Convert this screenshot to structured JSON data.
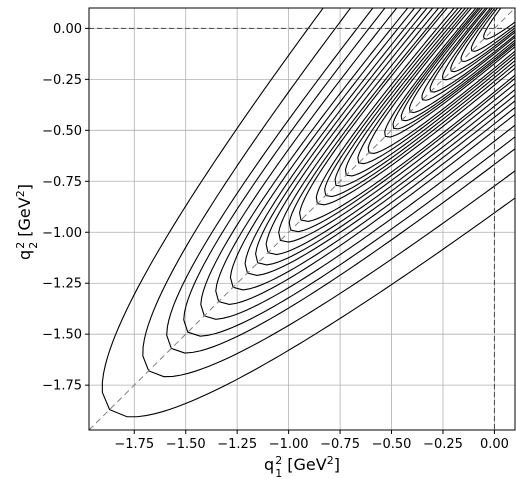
{
  "chart_data": {
    "type": "contour",
    "xlabel": {
      "main": "q",
      "sup": "2",
      "sub": "1",
      "unit_prefix": " [GeV",
      "unit_sup": "2",
      "unit_suffix": "]"
    },
    "ylabel": {
      "main": "q",
      "sup": "2",
      "sub": "2",
      "unit_prefix": " [GeV",
      "unit_sup": "2",
      "unit_suffix": "]"
    },
    "xlim": [
      -1.97,
      0.1
    ],
    "ylim": [
      -1.97,
      0.1
    ],
    "grid": true,
    "x_ticks": [
      -1.75,
      -1.5,
      -1.25,
      -1.0,
      -0.75,
      -0.5,
      -0.25,
      0.0
    ],
    "y_ticks": [
      0.0,
      -0.25,
      -0.5,
      -0.75,
      -1.0,
      -1.25,
      -1.5,
      -1.75
    ],
    "x_tick_labels": [
      "−1.75",
      "−1.50",
      "−1.25",
      "−1.00",
      "−0.75",
      "−0.50",
      "−0.25",
      "0.00"
    ],
    "y_tick_labels": [
      "0.00",
      "−0.25",
      "−0.50",
      "−0.75",
      "−1.00",
      "−1.25",
      "−1.50",
      "−1.75"
    ],
    "reference_lines": [
      {
        "type": "horizontal",
        "y": 0.0,
        "style": "dashed"
      },
      {
        "type": "vertical",
        "x": 0.0,
        "style": "dashed"
      },
      {
        "type": "diagonal",
        "equation": "y = x",
        "style": "dashed"
      }
    ],
    "contours": [
      {
        "tip": -1.87,
        "half_width_coef": 0.19
      },
      {
        "tip": -1.68,
        "half_width_coef": 0.17
      },
      {
        "tip": -1.57,
        "half_width_coef": 0.15
      },
      {
        "tip": -1.49,
        "half_width_coef": 0.14
      },
      {
        "tip": -1.41,
        "half_width_coef": 0.13
      },
      {
        "tip": -1.34,
        "half_width_coef": 0.12
      },
      {
        "tip": -1.27,
        "half_width_coef": 0.115
      },
      {
        "tip": -1.2,
        "half_width_coef": 0.11
      },
      {
        "tip": -1.15,
        "half_width_coef": 0.105
      },
      {
        "tip": -1.1,
        "half_width_coef": 0.1
      },
      {
        "tip": -1.04,
        "half_width_coef": 0.095
      },
      {
        "tip": -0.99,
        "half_width_coef": 0.09
      },
      {
        "tip": -0.94,
        "half_width_coef": 0.088
      },
      {
        "tip": -0.86,
        "half_width_coef": 0.082
      },
      {
        "tip": -0.82,
        "half_width_coef": 0.078
      },
      {
        "tip": -0.77,
        "half_width_coef": 0.075
      },
      {
        "tip": -0.72,
        "half_width_coef": 0.072
      },
      {
        "tip": -0.66,
        "half_width_coef": 0.07
      },
      {
        "tip": -0.61,
        "half_width_coef": 0.068
      },
      {
        "tip": -0.53,
        "half_width_coef": 0.065
      },
      {
        "tip": -0.49,
        "half_width_coef": 0.063
      },
      {
        "tip": -0.45,
        "half_width_coef": 0.062
      },
      {
        "tip": -0.41,
        "half_width_coef": 0.06
      },
      {
        "tip": -0.35,
        "half_width_coef": 0.058
      },
      {
        "tip": -0.31,
        "half_width_coef": 0.057
      },
      {
        "tip": -0.25,
        "half_width_coef": 0.055
      },
      {
        "tip": -0.21,
        "half_width_coef": 0.054
      },
      {
        "tip": -0.16,
        "half_width_coef": 0.053
      },
      {
        "tip": -0.11,
        "half_width_coef": 0.052
      },
      {
        "tip": -0.05,
        "half_width_coef": 0.051
      }
    ]
  }
}
